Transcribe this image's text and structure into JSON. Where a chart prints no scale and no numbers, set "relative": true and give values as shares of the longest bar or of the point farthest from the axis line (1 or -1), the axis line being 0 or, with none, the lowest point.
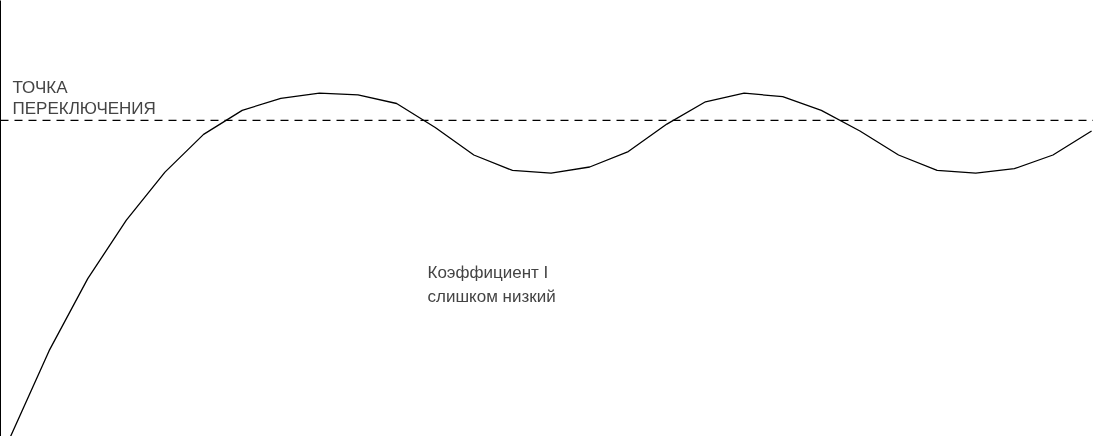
{
  "chart_data": {
    "type": "line",
    "relative": true,
    "categories": [
      null,
      null,
      null,
      null,
      null,
      null,
      null,
      null,
      null,
      null,
      null,
      null,
      null,
      null,
      null,
      null,
      null,
      null,
      null,
      null,
      null,
      null,
      null,
      null,
      null,
      null,
      null,
      null,
      null
    ],
    "series": [
      {
        "color": "#000000",
        "values": [
          0,
          0.25,
          0.46,
          0.63,
          0.77,
          0.88,
          0.95,
          0.985,
          1.0,
          0.995,
          0.97,
          0.9,
          0.82,
          0.775,
          0.767,
          0.785,
          0.83,
          0.91,
          0.975,
          1.0,
          0.99,
          0.95,
          0.89,
          0.82,
          0.775,
          0.767,
          0.78,
          0.82,
          0.89
        ]
      }
    ],
    "ref_lines": [
      {
        "axis": "y",
        "value": 0.921,
        "label": "ТОЧКА\nПЕРЕКЛЮЧЕНИЯ",
        "color": "#000000",
        "line_style": "dashed"
      }
    ],
    "annotations": [
      "Коэффициент I\nслишком низкий"
    ],
    "marker": "none",
    "line_style": "solid"
  }
}
